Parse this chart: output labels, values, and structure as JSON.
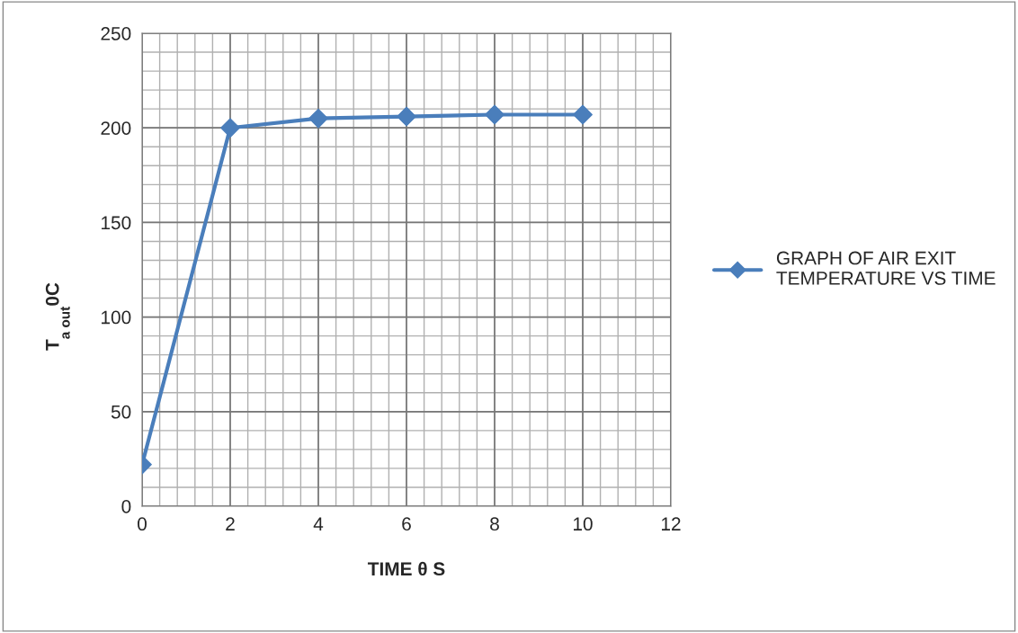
{
  "chart_data": {
    "type": "line",
    "xlabel": "TIME θ S",
    "ylabel": "T$_{a out}$0C",
    "x": [
      0,
      2,
      4,
      6,
      8,
      10
    ],
    "series": [
      {
        "name": "GRAPH OF AIR EXIT\nTEMPERATURE VS TIME",
        "color": "#4a7ebb",
        "values": [
          22,
          200,
          205,
          206,
          207,
          207
        ]
      }
    ],
    "xlim": [
      0,
      12
    ],
    "xticks": [
      0,
      2,
      4,
      6,
      8,
      10,
      12
    ],
    "ylim": [
      0,
      250
    ],
    "yticks": [
      0,
      50,
      100,
      150,
      200,
      250
    ],
    "grid": true,
    "legend": "right",
    "marker": "diamond",
    "line_style": "solid"
  }
}
